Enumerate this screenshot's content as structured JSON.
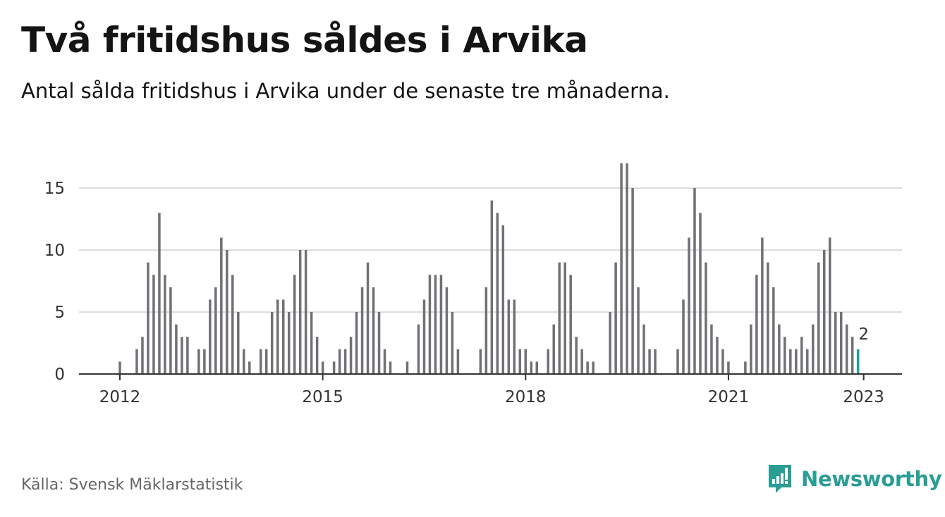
{
  "title": "Två fritidshus såldes i Arvika",
  "subtitle": "Antal sålda fritidshus i Arvika under de senaste tre månaderna.",
  "source": "Källa: Svensk Mäklarstatistik",
  "brand": {
    "name": "Newsworthy",
    "logo_icon": "bar-chart-icon"
  },
  "colors": {
    "bar": "#707075",
    "highlight": "#1aa198",
    "grid": "#dddddd",
    "axis": "#333333",
    "brand": "#2a9d95"
  },
  "chart_data": {
    "type": "bar",
    "x_start": "2012-01",
    "frequency": "monthly",
    "values": [
      1,
      0,
      0,
      2,
      3,
      9,
      8,
      13,
      8,
      7,
      4,
      3,
      3,
      0,
      2,
      2,
      6,
      7,
      11,
      10,
      8,
      5,
      2,
      1,
      0,
      2,
      2,
      5,
      6,
      6,
      5,
      8,
      10,
      10,
      5,
      3,
      1,
      0,
      1,
      2,
      2,
      3,
      5,
      7,
      9,
      7,
      5,
      2,
      1,
      0,
      0,
      1,
      0,
      4,
      6,
      8,
      8,
      8,
      7,
      5,
      2,
      0,
      0,
      0,
      2,
      7,
      14,
      13,
      12,
      6,
      6,
      2,
      2,
      1,
      1,
      0,
      2,
      4,
      9,
      9,
      8,
      3,
      2,
      1,
      1,
      0,
      0,
      5,
      9,
      17,
      17,
      15,
      7,
      4,
      2,
      2,
      0,
      0,
      0,
      2,
      6,
      11,
      15,
      13,
      9,
      4,
      3,
      2,
      1,
      0,
      0,
      1,
      4,
      8,
      11,
      9,
      7,
      4,
      3,
      2,
      2,
      3,
      2,
      4,
      9,
      10,
      11,
      5,
      5,
      4,
      3,
      2
    ],
    "x_tick_labels": [
      "2012",
      "2015",
      "2018",
      "2021",
      "2023"
    ],
    "y_ticks": [
      0,
      5,
      10,
      15
    ],
    "ylim": [
      0,
      17
    ],
    "highlight_last": true,
    "last_label": "2",
    "grid": true
  }
}
